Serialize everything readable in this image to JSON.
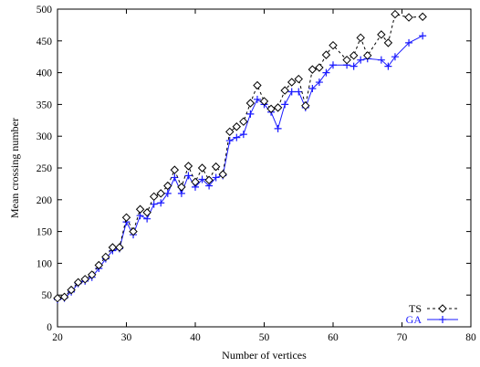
{
  "chart_data": {
    "type": "line",
    "title": "",
    "xlabel": "Number of vertices",
    "ylabel": "Mean crossing number",
    "xlim": [
      20,
      80
    ],
    "ylim": [
      0,
      500
    ],
    "x_ticks": [
      20,
      30,
      40,
      50,
      60,
      70,
      80
    ],
    "y_ticks": [
      0,
      50,
      100,
      150,
      200,
      250,
      300,
      350,
      400,
      450,
      500
    ],
    "grid": false,
    "legend_position": "bottom-right",
    "series": [
      {
        "name": "TS",
        "color": "#000000",
        "line_style": "dashed",
        "marker": "diamond",
        "x": [
          20,
          21,
          22,
          23,
          24,
          25,
          26,
          27,
          28,
          29,
          30,
          31,
          32,
          33,
          34,
          35,
          36,
          37,
          38,
          39,
          40,
          41,
          42,
          43,
          44,
          45,
          46,
          47,
          48,
          49,
          50,
          51,
          52,
          53,
          54,
          55,
          56,
          57,
          58,
          59,
          60,
          62,
          63,
          64,
          65,
          67,
          68,
          69,
          71,
          73
        ],
        "y": [
          45,
          47,
          58,
          70,
          75,
          82,
          97,
          110,
          125,
          125,
          172,
          150,
          185,
          180,
          205,
          210,
          222,
          247,
          220,
          253,
          228,
          250,
          231,
          252,
          240,
          307,
          315,
          323,
          352,
          380,
          355,
          343,
          345,
          372,
          385,
          390,
          348,
          405,
          408,
          428,
          443,
          420,
          427,
          455,
          427,
          460,
          447,
          492,
          487,
          488
        ]
      },
      {
        "name": "GA",
        "color": "#1a1aff",
        "line_style": "solid",
        "marker": "plus",
        "x": [
          20,
          21,
          22,
          23,
          24,
          25,
          26,
          27,
          28,
          29,
          30,
          31,
          32,
          33,
          34,
          35,
          36,
          37,
          38,
          39,
          40,
          41,
          42,
          43,
          44,
          45,
          46,
          47,
          48,
          49,
          50,
          51,
          52,
          53,
          54,
          55,
          56,
          57,
          58,
          59,
          60,
          62,
          63,
          64,
          65,
          67,
          68,
          69,
          71,
          73
        ],
        "y": [
          43,
          45,
          55,
          68,
          72,
          78,
          92,
          107,
          120,
          123,
          165,
          145,
          175,
          170,
          193,
          195,
          210,
          235,
          210,
          238,
          220,
          232,
          222,
          235,
          238,
          293,
          298,
          303,
          335,
          358,
          350,
          338,
          312,
          350,
          370,
          370,
          345,
          375,
          385,
          400,
          412,
          412,
          410,
          420,
          422,
          420,
          410,
          425,
          447,
          458
        ]
      }
    ]
  }
}
